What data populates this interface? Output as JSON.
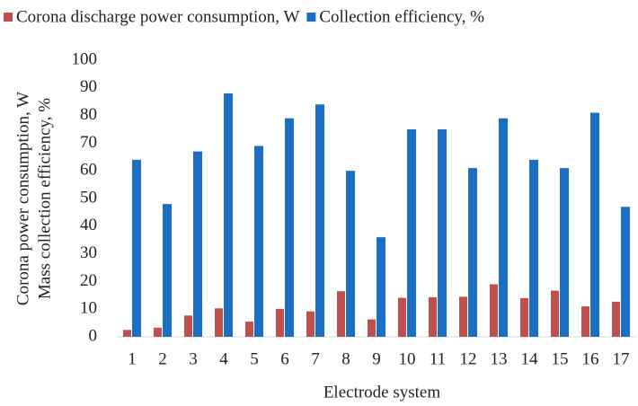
{
  "chart_data": {
    "type": "bar",
    "x_label": "Electrode system",
    "y_label": [
      "Corona power consumption, W",
      "Mass collection efficiency, %"
    ],
    "categories": [
      "1",
      "2",
      "3",
      "4",
      "5",
      "6",
      "7",
      "8",
      "9",
      "10",
      "11",
      "12",
      "13",
      "14",
      "15",
      "16",
      "17"
    ],
    "series": [
      {
        "name": "Corona discharge power consumption, W",
        "color": "#c0504d",
        "values": [
          2.5,
          3.3,
          7.7,
          10.3,
          5.5,
          10.1,
          9.2,
          16.5,
          6.3,
          14.1,
          14.3,
          14.5,
          19,
          14,
          16.7,
          11,
          12.7
        ]
      },
      {
        "name": "Collection efficiency, %",
        "color": "#1a6ec4",
        "values": [
          64,
          48,
          67,
          88,
          69,
          79,
          84,
          60,
          36,
          75,
          75,
          61,
          79,
          64,
          61,
          81,
          47
        ]
      }
    ],
    "ylim": [
      0,
      100
    ],
    "yticks": [
      0,
      10,
      20,
      30,
      40,
      50,
      60,
      70,
      80,
      90,
      100
    ],
    "grid": false,
    "legend": "top"
  }
}
